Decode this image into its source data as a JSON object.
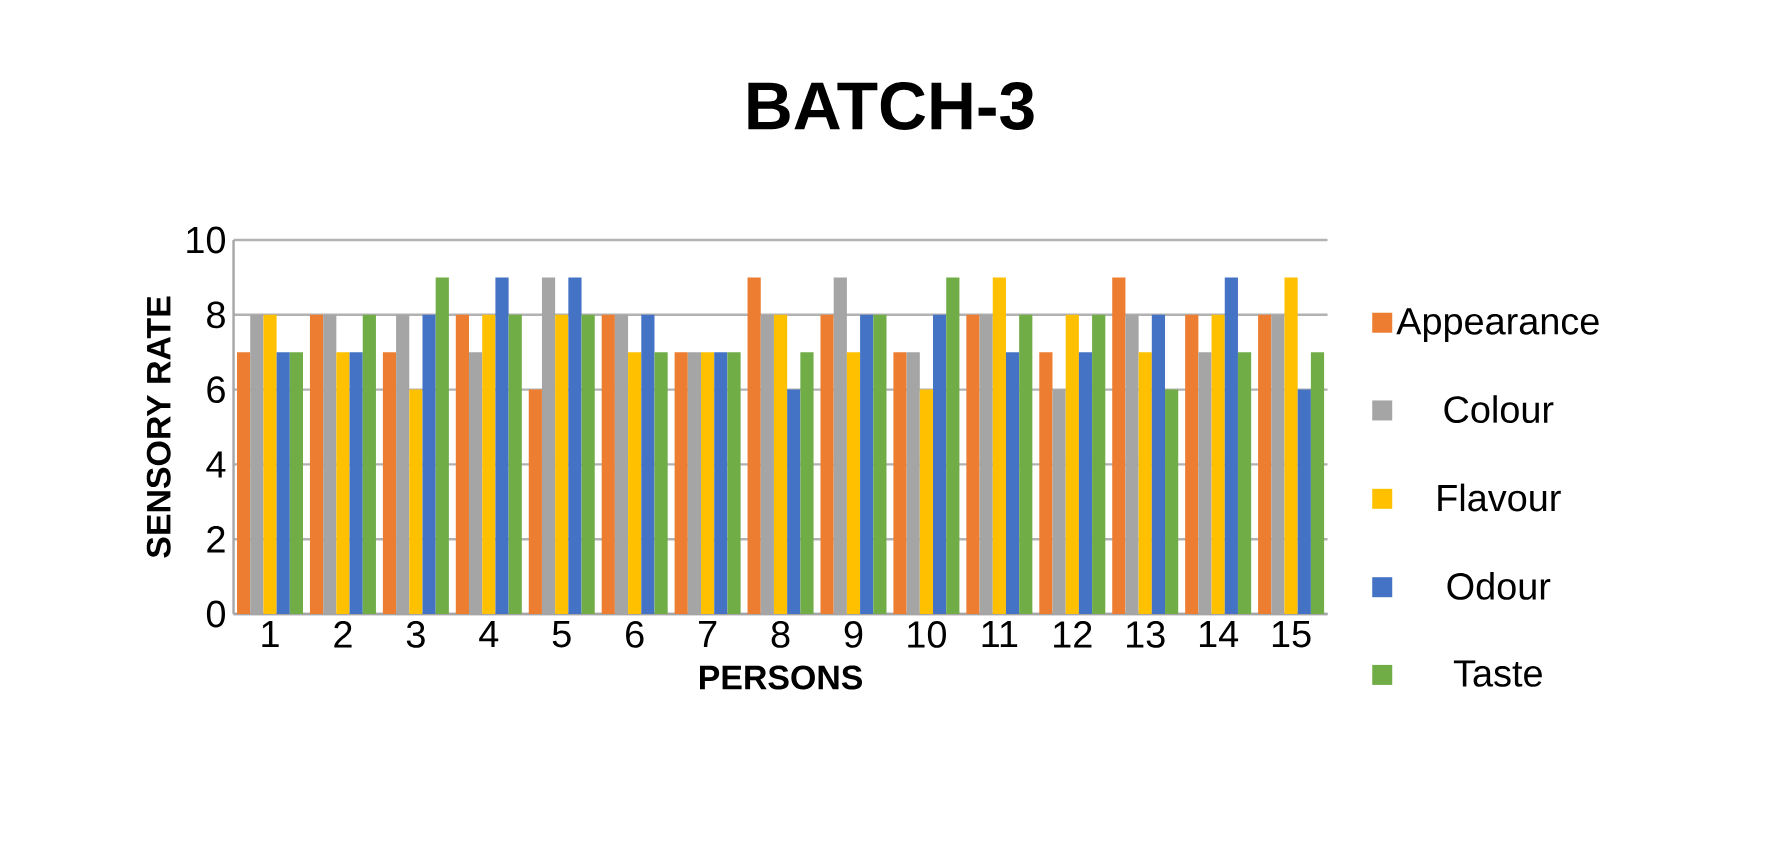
{
  "chart_data": {
    "type": "bar",
    "title": "BATCH-3",
    "xlabel": "PERSONS",
    "ylabel": "SENSORY RATE",
    "categories": [
      "1",
      "2",
      "3",
      "4",
      "5",
      "6",
      "7",
      "8",
      "9",
      "10",
      "11",
      "12",
      "13",
      "14",
      "15"
    ],
    "series": [
      {
        "name": "Appearance",
        "color": "#ed7d31",
        "values": [
          7,
          8,
          7,
          8,
          6,
          8,
          7,
          9,
          8,
          7,
          8,
          7,
          9,
          8,
          8
        ]
      },
      {
        "name": "Colour",
        "color": "#a5a5a5",
        "values": [
          8,
          8,
          8,
          7,
          9,
          8,
          7,
          8,
          9,
          7,
          8,
          6,
          8,
          7,
          8
        ]
      },
      {
        "name": "Flavour",
        "color": "#ffc000",
        "values": [
          8,
          7,
          6,
          8,
          8,
          7,
          7,
          8,
          7,
          6,
          9,
          8,
          7,
          8,
          9
        ]
      },
      {
        "name": "Odour",
        "color": "#4472c4",
        "values": [
          7,
          7,
          8,
          9,
          9,
          8,
          7,
          6,
          8,
          8,
          7,
          7,
          8,
          9,
          6
        ]
      },
      {
        "name": "Taste",
        "color": "#70ad47",
        "values": [
          7,
          8,
          9,
          8,
          8,
          7,
          7,
          7,
          8,
          9,
          8,
          8,
          6,
          7,
          7
        ]
      }
    ],
    "ylim": [
      0,
      10
    ],
    "yticks": [
      0,
      2,
      4,
      6,
      8,
      10
    ],
    "grid": "y",
    "legend": "right"
  }
}
